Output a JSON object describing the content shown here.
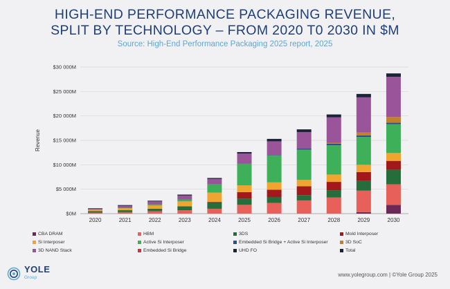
{
  "title_line1": "HIGH-END PERFORMANCE PACKAGING REVENUE,",
  "title_line2": "SPLIT BY TECHNOLOGY – FROM 2020 T0 2030 IN $M",
  "subtitle": "Source: High-End Performance Packaging 2025  report, 2025",
  "footer": "www.yolegroup.com | ©Yole Group 2025",
  "logo": {
    "name": "YOLE",
    "sub": "Group"
  },
  "colors": {
    "CBA DRAM": "#6b2a55",
    "HBM": "#e8605a",
    "3DS": "#256d3b",
    "Mold Interposer": "#a3181a",
    "Si Interposer": "#f2a430",
    "Active Si Interposer": "#3fb05a",
    "Embedded Si Bridge + Active Si Interposer": "#2a4f93",
    "3D SoC": "#c0802c",
    "3D NAND Stack": "#9a559a",
    "Embedded Si Bridge": "#c8333d",
    "UHD FO": "#1b2336",
    "Total": "#1b2336"
  },
  "chart_data": {
    "type": "bar",
    "stacked": true,
    "ylabel": "Revenue",
    "ylim": [
      0,
      30000
    ],
    "yticks": [
      "$0M",
      "$5 000M",
      "$10 000M",
      "$15 000M",
      "$20 000M",
      "$25 000M",
      "$30 000M"
    ],
    "categories": [
      "2020",
      "2021",
      "2022",
      "2023",
      "2024",
      "2025",
      "2026",
      "2027",
      "2028",
      "2029",
      "2030"
    ],
    "series": [
      {
        "name": "CBA DRAM",
        "values": [
          0,
          0,
          0,
          0,
          0,
          0,
          0,
          0,
          0,
          300,
          1800
        ]
      },
      {
        "name": "HBM",
        "values": [
          200,
          300,
          500,
          700,
          1000,
          1800,
          2200,
          2700,
          3300,
          4400,
          4200
        ]
      },
      {
        "name": "3DS",
        "values": [
          300,
          400,
          500,
          800,
          1300,
          1300,
          1200,
          1100,
          1500,
          2000,
          3000
        ]
      },
      {
        "name": "Mold Interposer",
        "values": [
          0,
          0,
          0,
          0,
          100,
          1300,
          1500,
          1800,
          1700,
          1800,
          1800
        ]
      },
      {
        "name": "Si Interposer",
        "values": [
          300,
          400,
          700,
          1000,
          1900,
          1400,
          1500,
          1300,
          1500,
          1500,
          1600
        ]
      },
      {
        "name": "Active Si Interposer",
        "values": [
          0,
          100,
          200,
          400,
          1700,
          4400,
          5500,
          6200,
          6000,
          5700,
          5900
        ]
      },
      {
        "name": "Embedded Si Bridge + Active Si Interposer",
        "values": [
          0,
          0,
          0,
          0,
          0,
          0,
          100,
          200,
          300,
          300,
          300
        ]
      },
      {
        "name": "3D SoC",
        "values": [
          0,
          0,
          0,
          0,
          0,
          0,
          0,
          0,
          200,
          600,
          1200
        ]
      },
      {
        "name": "3D NAND Stack",
        "values": [
          200,
          400,
          600,
          800,
          1100,
          2100,
          2800,
          3400,
          5200,
          7200,
          8200
        ]
      },
      {
        "name": "Embedded Si Bridge",
        "values": [
          0,
          0,
          0,
          0,
          0,
          0,
          0,
          0,
          0,
          0,
          0
        ]
      },
      {
        "name": "UHD FO",
        "values": [
          100,
          150,
          150,
          200,
          200,
          300,
          500,
          550,
          600,
          700,
          700
        ]
      }
    ],
    "legend": [
      "CBA DRAM",
      "HBM",
      "3DS",
      "Mold Interposer",
      "Si Interposer",
      "Active Si Interposer",
      "Embedded Si Bridge + Active Si Interposer",
      "3D SoC",
      "3D NAND Stack",
      "Embedded Si Bridge",
      "UHD FO",
      "Total"
    ]
  }
}
